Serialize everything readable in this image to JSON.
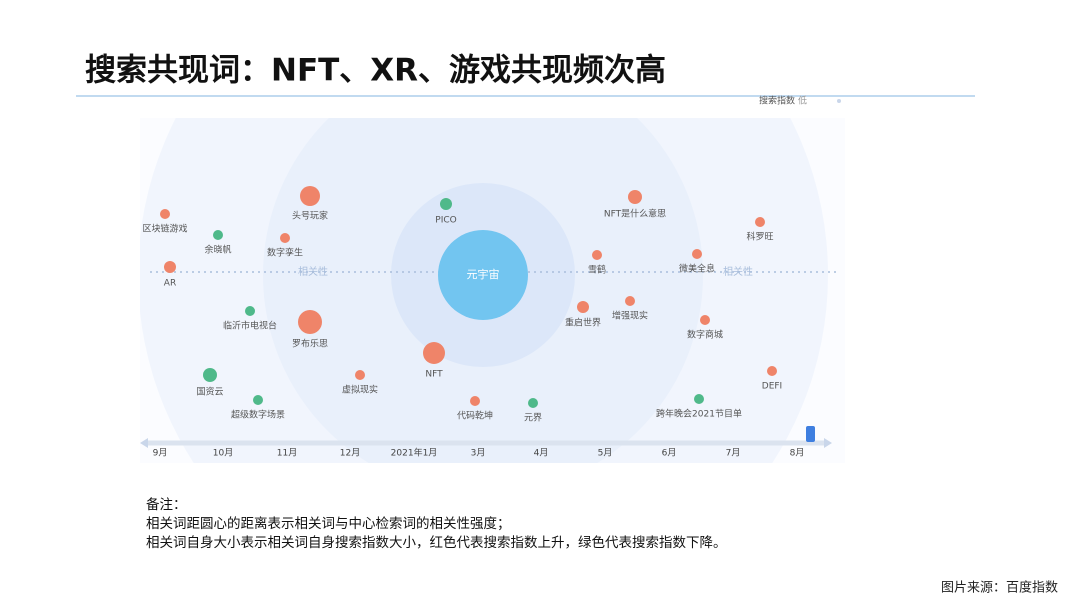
{
  "title": "搜索共现词：NFT、XR、游戏共现频次高",
  "legend": {
    "label": "搜索指数",
    "low": "低"
  },
  "center": {
    "label": "元宇宙",
    "color": "#72c5f0"
  },
  "axis_label": "相关性",
  "words": [
    {
      "label": "区块链游戏",
      "color": "#ef8469"
    },
    {
      "label": "余晓帆",
      "color": "#4fb98a"
    },
    {
      "label": "头号玩家",
      "color": "#ef8469"
    },
    {
      "label": "数字孪生",
      "color": "#ef8469"
    },
    {
      "label": "AR",
      "color": "#ef8469"
    },
    {
      "label": "临沂市电视台",
      "color": "#4fb98a"
    },
    {
      "label": "罗布乐思",
      "color": "#ef8469"
    },
    {
      "label": "国资云",
      "color": "#4fb98a"
    },
    {
      "label": "超级数字场景",
      "color": "#4fb98a"
    },
    {
      "label": "虚拟现实",
      "color": "#ef8469"
    },
    {
      "label": "NFT",
      "color": "#ef8469"
    },
    {
      "label": "PICO",
      "color": "#4fb98a"
    },
    {
      "label": "代码乾坤",
      "color": "#ef8469"
    },
    {
      "label": "元界",
      "color": "#4fb98a"
    },
    {
      "label": "NFT是什么意思",
      "color": "#ef8469"
    },
    {
      "label": "雪鹤",
      "color": "#ef8469"
    },
    {
      "label": "重启世界",
      "color": "#ef8469"
    },
    {
      "label": "增强现实",
      "color": "#ef8469"
    },
    {
      "label": "微美全息",
      "color": "#ef8469"
    },
    {
      "label": "科罗旺",
      "color": "#ef8469"
    },
    {
      "label": "数字商城",
      "color": "#ef8469"
    },
    {
      "label": "DEFI",
      "color": "#ef8469"
    },
    {
      "label": "跨年晚会2021节目单",
      "color": "#4fb98a"
    }
  ],
  "timeline": [
    "9月",
    "10月",
    "11月",
    "12月",
    "2021年1月",
    "3月",
    "4月",
    "5月",
    "6月",
    "7月",
    "8月"
  ],
  "notes": [
    "备注：",
    "相关词距圆心的距离表示相关词与中心检索词的相关性强度；",
    "相关词自身大小表示相关词自身搜索指数大小，红色代表搜索指数上升，绿色代表搜索指数下降。"
  ],
  "source": "图片来源：百度指数"
}
